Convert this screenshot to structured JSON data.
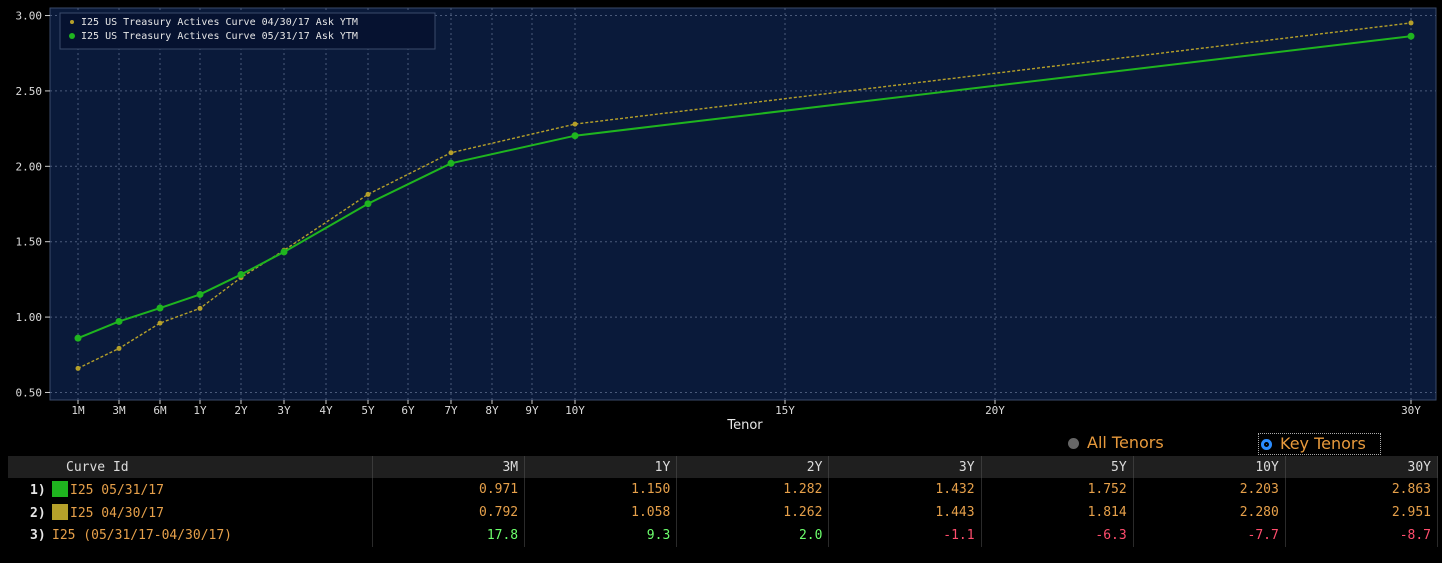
{
  "chart_data": {
    "type": "line",
    "xlabel": "Tenor",
    "ylabel": "",
    "ylim": [
      0.45,
      3.05
    ],
    "yticks": [
      "3.00",
      "2.50",
      "2.00",
      "1.50",
      "1.00",
      "0.50"
    ],
    "x_ticks": [
      "1M",
      "3M",
      "6M",
      "1Y",
      "2Y",
      "3Y",
      "4Y",
      "5Y",
      "6Y",
      "7Y",
      "8Y",
      "9Y",
      "10Y",
      "15Y",
      "20Y",
      "30Y"
    ],
    "grid": true,
    "legend_position": "top-left",
    "series": [
      {
        "name": "I25 US Treasury Actives Curve 04/30/17 Ask YTM",
        "color": "#b5a02a",
        "points": [
          {
            "tenor": "1M",
            "y": 0.66
          },
          {
            "tenor": "3M",
            "y": 0.792
          },
          {
            "tenor": "6M",
            "y": 0.96
          },
          {
            "tenor": "1Y",
            "y": 1.058
          },
          {
            "tenor": "2Y",
            "y": 1.262
          },
          {
            "tenor": "3Y",
            "y": 1.443
          },
          {
            "tenor": "5Y",
            "y": 1.814
          },
          {
            "tenor": "7Y",
            "y": 2.09
          },
          {
            "tenor": "10Y",
            "y": 2.28
          },
          {
            "tenor": "30Y",
            "y": 2.951
          }
        ]
      },
      {
        "name": "I25 US Treasury Actives Curve 05/31/17 Ask YTM",
        "color": "#1fb51f",
        "points": [
          {
            "tenor": "1M",
            "y": 0.86
          },
          {
            "tenor": "3M",
            "y": 0.971
          },
          {
            "tenor": "6M",
            "y": 1.06
          },
          {
            "tenor": "1Y",
            "y": 1.15
          },
          {
            "tenor": "2Y",
            "y": 1.282
          },
          {
            "tenor": "3Y",
            "y": 1.432
          },
          {
            "tenor": "5Y",
            "y": 1.752
          },
          {
            "tenor": "7Y",
            "y": 2.02
          },
          {
            "tenor": "10Y",
            "y": 2.203
          },
          {
            "tenor": "30Y",
            "y": 2.863
          }
        ]
      }
    ]
  },
  "toggle": {
    "all_label": "All Tenors",
    "key_label": "Key Tenors",
    "selected": "key"
  },
  "table": {
    "headers": [
      "Curve Id",
      "3M",
      "1Y",
      "2Y",
      "3Y",
      "5Y",
      "10Y",
      "30Y"
    ],
    "rows": [
      {
        "num": "1)",
        "label": "I25 05/31/17",
        "swatch": "#1fb51f",
        "values": [
          "0.971",
          "1.150",
          "1.282",
          "1.432",
          "1.752",
          "2.203",
          "2.863"
        ]
      },
      {
        "num": "2)",
        "label": "I25 04/30/17",
        "swatch": "#b5a02a",
        "values": [
          "0.792",
          "1.058",
          "1.262",
          "1.443",
          "1.814",
          "2.280",
          "2.951"
        ]
      },
      {
        "num": "3)",
        "label": "I25 (05/31/17-04/30/17)",
        "swatch": "",
        "values": [
          "17.8",
          "9.3",
          "2.0",
          "-1.1",
          "-6.3",
          "-7.7",
          "-8.7"
        ]
      }
    ]
  }
}
